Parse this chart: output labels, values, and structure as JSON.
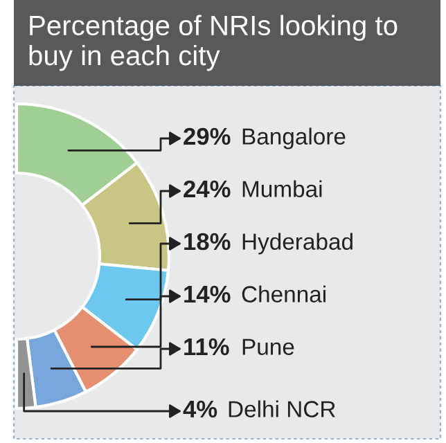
{
  "chart_data": {
    "type": "donut",
    "title": "Percentage of NRIs looking to buy in each city",
    "categories": [
      "Bangalore",
      "Mumbai",
      "Hyderabad",
      "Chennai",
      "Pune",
      "Delhi NCR"
    ],
    "values": [
      29,
      24,
      18,
      14,
      11,
      4
    ],
    "value_labels": [
      "29%",
      "24%",
      "18%",
      "14%",
      "11%",
      "4%"
    ],
    "colors": [
      "#9fcf95",
      "#c8c585",
      "#6cc8ee",
      "#e58f70",
      "#77a6dc",
      "#949494"
    ]
  }
}
